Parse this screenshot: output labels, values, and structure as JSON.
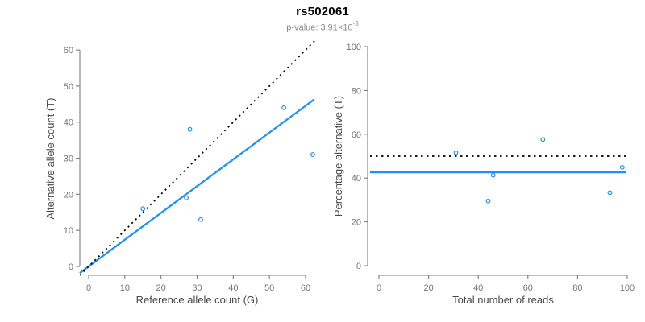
{
  "header": {
    "title": "rs502061",
    "subtitle_label": "p-value: ",
    "subtitle_value_base": "3.91×10",
    "subtitle_value_exp": "-3"
  },
  "colors": {
    "point_blue": "#1E90FF",
    "line_blue": "#1E90FF",
    "dotted_black": "#000000",
    "axis_gray": "#7d7d7d",
    "tick_label_gray": "#757575",
    "axis_title_gray": "#4a4a4a",
    "subtitle_gray": "#8c8c8c"
  },
  "chart_data": [
    {
      "name": "allele-counts-scatter",
      "type": "scatter",
      "xlabel": "Reference allele count (G)",
      "ylabel": "Alternative allele count (T)",
      "xlim": [
        0,
        60
      ],
      "ylim": [
        0,
        60
      ],
      "xticks": [
        0,
        10,
        20,
        30,
        40,
        50,
        60
      ],
      "yticks": [
        0,
        10,
        20,
        30,
        40,
        50,
        60
      ],
      "grid": false,
      "points": [
        [
          15,
          16
        ],
        [
          28,
          38
        ],
        [
          27,
          19
        ],
        [
          31,
          13
        ],
        [
          54,
          44
        ],
        [
          62,
          31
        ]
      ],
      "ablines": [
        {
          "name": "fitted-proportion-line",
          "style": "solid",
          "color": "blue",
          "slope": 0.742,
          "intercept": 0
        },
        {
          "name": "identity-line",
          "style": "dotted",
          "color": "black",
          "slope": 1,
          "intercept": 0
        }
      ]
    },
    {
      "name": "percentage-alternative-scatter",
      "type": "scatter",
      "xlabel": "Total number of reads",
      "ylabel": "Percentage alternative (T)",
      "xlim": [
        0,
        100
      ],
      "ylim": [
        0,
        100
      ],
      "xticks": [
        0,
        20,
        40,
        60,
        80,
        100
      ],
      "yticks": [
        0,
        20,
        40,
        60,
        80,
        100
      ],
      "grid": false,
      "points": [
        [
          31,
          51.6
        ],
        [
          66,
          57.6
        ],
        [
          46,
          41.3
        ],
        [
          44,
          29.5
        ],
        [
          98,
          44.9
        ],
        [
          93,
          33.3
        ]
      ],
      "hlines": [
        {
          "name": "fitted-percentage-line",
          "style": "solid",
          "color": "blue",
          "y": 42.6
        },
        {
          "name": "expected-50-percent-line",
          "style": "dotted",
          "color": "black",
          "y": 50
        }
      ]
    }
  ]
}
